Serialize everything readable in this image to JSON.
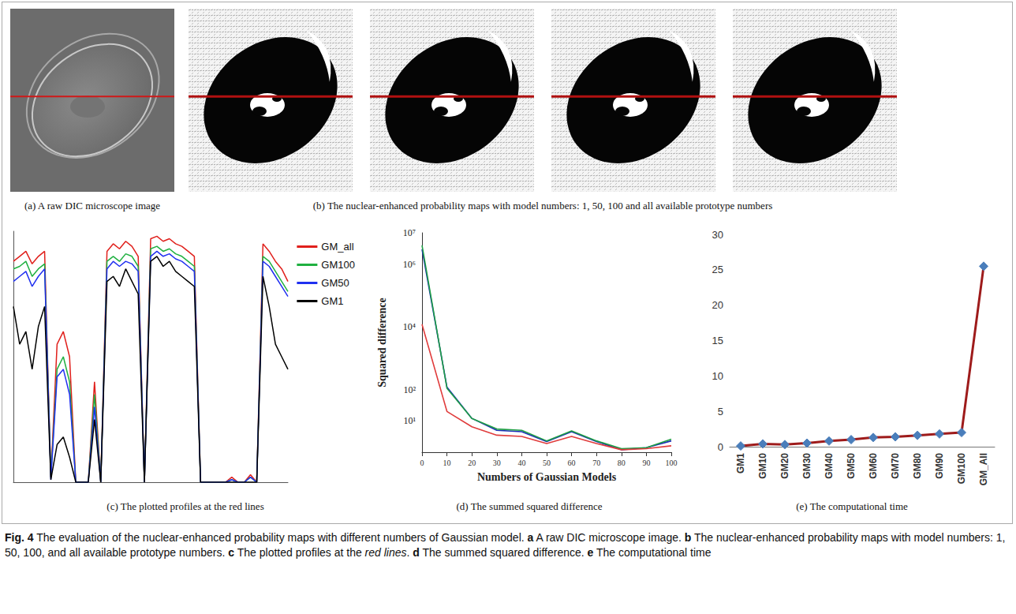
{
  "image_panels": [
    {
      "caption": "(a) A raw DIC microscope image",
      "type": "raw",
      "count": 1
    },
    {
      "caption": "(b) The nuclear-enhanced probability maps with model numbers: 1, 50, 100 and all available prototype numbers",
      "type": "probability_map",
      "count": 4
    }
  ],
  "chart_data": [
    {
      "type": "line",
      "title": "(c) The plotted profiles at the red lines",
      "x": [
        0,
        10,
        20,
        30,
        40,
        50,
        60,
        70,
        80,
        90,
        100,
        110,
        120,
        130,
        140,
        150,
        160,
        170,
        180,
        190,
        200,
        210,
        220,
        230,
        240,
        250,
        260,
        270,
        280,
        290,
        300,
        310,
        320,
        330,
        340,
        350,
        360,
        370,
        380,
        390,
        400,
        410,
        420,
        430,
        440
      ],
      "series": [
        {
          "name": "GM_all",
          "color": "#e0201c",
          "values": [
            0.88,
            0.9,
            0.92,
            0.87,
            0.9,
            0.92,
            0.02,
            0.55,
            0.6,
            0.5,
            0,
            0,
            0,
            0.4,
            0,
            0.92,
            0.95,
            0.93,
            0.96,
            0.94,
            0.9,
            0,
            0.97,
            0.98,
            0.96,
            0.97,
            0.95,
            0.94,
            0.92,
            0.9,
            0,
            0,
            0,
            0,
            0,
            0.02,
            0,
            0,
            0.03,
            0,
            0.95,
            0.92,
            0.88,
            0.85,
            0.8
          ]
        },
        {
          "name": "GM100",
          "color": "#1fb040",
          "values": [
            0.85,
            0.86,
            0.88,
            0.82,
            0.85,
            0.87,
            0.02,
            0.45,
            0.5,
            0.4,
            0,
            0,
            0,
            0.35,
            0,
            0.88,
            0.9,
            0.88,
            0.91,
            0.9,
            0.86,
            0,
            0.93,
            0.94,
            0.92,
            0.93,
            0.91,
            0.9,
            0.88,
            0.86,
            0,
            0,
            0,
            0,
            0,
            0.01,
            0,
            0,
            0.02,
            0,
            0.9,
            0.88,
            0.84,
            0.8,
            0.76
          ]
        },
        {
          "name": "GM50",
          "color": "#2030f0",
          "values": [
            0.8,
            0.82,
            0.84,
            0.78,
            0.82,
            0.85,
            0.01,
            0.42,
            0.45,
            0.35,
            0,
            0,
            0,
            0.3,
            0,
            0.85,
            0.88,
            0.86,
            0.88,
            0.87,
            0.84,
            0,
            0.9,
            0.92,
            0.9,
            0.91,
            0.89,
            0.88,
            0.86,
            0.84,
            0,
            0,
            0,
            0,
            0,
            0.01,
            0,
            0,
            0.02,
            0,
            0.88,
            0.86,
            0.82,
            0.78,
            0.74
          ]
        },
        {
          "name": "GM1",
          "color": "#000000",
          "values": [
            0.7,
            0.55,
            0.6,
            0.45,
            0.62,
            0.7,
            0.01,
            0.15,
            0.18,
            0.1,
            0,
            0,
            0,
            0.25,
            0,
            0.8,
            0.82,
            0.78,
            0.85,
            0.8,
            0.75,
            0,
            0.88,
            0.9,
            0.86,
            0.88,
            0.84,
            0.82,
            0.8,
            0.78,
            0,
            0,
            0,
            0,
            0,
            0,
            0,
            0,
            0,
            0,
            0.82,
            0.7,
            0.55,
            0.5,
            0.45
          ]
        }
      ],
      "xlim": [
        0,
        440
      ],
      "ylim": [
        0,
        1
      ],
      "tick_labels": false,
      "grid": false,
      "legend": "right"
    },
    {
      "type": "line",
      "title": "(d) The summed squared difference",
      "xlabel": "Numbers of Gaussian Models",
      "ylabel": "Squared difference",
      "x": [
        0,
        10,
        20,
        30,
        40,
        50,
        60,
        70,
        80,
        90,
        100
      ],
      "series": [
        {
          "color": "#1c2cb8",
          "values": [
            3000000,
            120,
            12,
            5,
            4.5,
            2.2,
            4.5,
            2.2,
            1.2,
            1.4,
            2.3
          ]
        },
        {
          "color": "#1f9e45",
          "values": [
            4000000,
            110,
            12,
            5.5,
            5,
            2.3,
            4.8,
            2.3,
            1.3,
            1.4,
            2.6
          ]
        },
        {
          "color": "#e03c3c",
          "values": [
            12000,
            20,
            6.5,
            3.5,
            3.2,
            1.9,
            3.2,
            1.9,
            1.2,
            1.3,
            1.6
          ]
        }
      ],
      "xlim": [
        0,
        100
      ],
      "xticks": [
        0,
        10,
        20,
        30,
        40,
        50,
        60,
        70,
        80,
        90,
        100
      ],
      "ylim": [
        1,
        10000000
      ],
      "yticks": [
        {
          "value": 10,
          "label": "10¹"
        },
        {
          "value": 100,
          "label": "10²"
        },
        {
          "value": 10000,
          "label": "10⁴"
        },
        {
          "value": 1000000,
          "label": "10⁶"
        },
        {
          "value": 10000000,
          "label": "10⁷"
        }
      ],
      "log": "y",
      "grid": false
    },
    {
      "type": "line",
      "title": "(e) The computational time",
      "categories": [
        "GM1",
        "GM10",
        "GM20",
        "GM30",
        "GM40",
        "GM50",
        "GM60",
        "GM70",
        "GM80",
        "GM90",
        "GM100",
        "GM_All"
      ],
      "values": [
        0.1,
        0.4,
        0.3,
        0.5,
        0.8,
        1.0,
        1.3,
        1.4,
        1.6,
        1.8,
        2.0,
        25.5
      ],
      "color": "#9e1b1b",
      "marker": "diamond",
      "ylim": [
        0,
        30
      ],
      "yticks": [
        0,
        5,
        10,
        15,
        20,
        25,
        30
      ],
      "grid": false
    }
  ],
  "figure_caption": [
    {
      "text": "Fig. 4",
      "style": "bold"
    },
    {
      "text": " The evaluation of the nuclear-enhanced probability maps with different numbers of Gaussian model. "
    },
    {
      "text": "a",
      "style": "bold"
    },
    {
      "text": " A raw DIC microscope image. "
    },
    {
      "text": "b",
      "style": "bold"
    },
    {
      "text": " The nuclear-enhanced probability maps with model numbers: 1, 50, 100, and all available prototype numbers. "
    },
    {
      "text": "c",
      "style": "bold"
    },
    {
      "text": " The plotted profiles at the "
    },
    {
      "text": "red lines",
      "style": "italic"
    },
    {
      "text": ". "
    },
    {
      "text": "d",
      "style": "bold"
    },
    {
      "text": " The summed squared difference. "
    },
    {
      "text": "e",
      "style": "bold"
    },
    {
      "text": " The computational time"
    }
  ]
}
